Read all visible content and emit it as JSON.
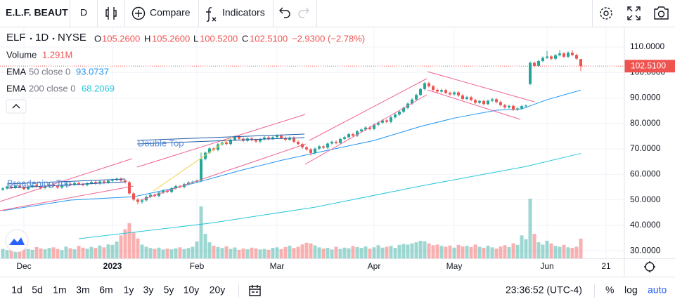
{
  "toolbar": {
    "symbol": "E.L.F. BEAUT",
    "interval": "D",
    "compare": "Compare",
    "indicators": "Indicators"
  },
  "legend": {
    "symbol": "ELF",
    "interval": "1D",
    "exchange": "NYSE",
    "ohlc": [
      {
        "key": "O",
        "value": "105.2600"
      },
      {
        "key": "H",
        "value": "105.2600"
      },
      {
        "key": "L",
        "value": "100.5200"
      },
      {
        "key": "C",
        "value": "102.5100"
      }
    ],
    "change": "−2.9300 (−2.78%)",
    "volume_name": "Volume",
    "volume_label": "1.291M"
  },
  "bottom_bar": {
    "ranges": [
      "1d",
      "5d",
      "1m",
      "3m",
      "6m",
      "1y",
      "3y",
      "5y",
      "10y",
      "20y"
    ],
    "clock": "23:36:52 (UTC-4)",
    "scale_options": [
      "%",
      "log",
      "auto"
    ]
  },
  "chart_data": {
    "type": "candlestick",
    "categories": [
      null,
      null,
      null,
      null,
      null,
      "Dec",
      null,
      null,
      null,
      null,
      null,
      null,
      null,
      null,
      null,
      null,
      null,
      null,
      null,
      null,
      null,
      null,
      null,
      null,
      null,
      null,
      "2023",
      null,
      null,
      null,
      null,
      null,
      null,
      null,
      null,
      null,
      null,
      null,
      null,
      null,
      null,
      null,
      null,
      null,
      null,
      null,
      "Feb",
      null,
      null,
      null,
      null,
      null,
      null,
      null,
      null,
      null,
      null,
      null,
      null,
      null,
      null,
      null,
      null,
      null,
      null,
      "Mar",
      null,
      null,
      null,
      null,
      null,
      null,
      null,
      null,
      null,
      null,
      null,
      null,
      null,
      null,
      null,
      null,
      null,
      null,
      null,
      null,
      null,
      null,
      "Apr",
      null,
      null,
      null,
      null,
      null,
      null,
      null,
      null,
      null,
      null,
      null,
      null,
      null,
      null,
      null,
      null,
      null,
      null,
      "May",
      null,
      null,
      null,
      null,
      null,
      null,
      null,
      null,
      null,
      null,
      null,
      null,
      null,
      null,
      null,
      null,
      null,
      null,
      null,
      null,
      null,
      "Jun",
      null,
      null,
      null,
      null,
      null,
      null,
      null,
      null,
      null,
      null,
      null,
      null,
      null,
      "21"
    ],
    "ohlc": [
      [
        54.0,
        55.0,
        53.5,
        54.5
      ],
      [
        54.5,
        55.7,
        54.0,
        55.2
      ],
      [
        55.2,
        55.7,
        54.3,
        54.8
      ],
      [
        54.8,
        56.1,
        54.3,
        55.6
      ],
      [
        55.6,
        56.1,
        54.5,
        55.0
      ],
      [
        55.0,
        55.5,
        53.7,
        54.2
      ],
      [
        54.2,
        55.6,
        53.7,
        55.1
      ],
      [
        55.1,
        56.3,
        54.6,
        55.8
      ],
      [
        55.8,
        56.3,
        54.8,
        55.3
      ],
      [
        55.3,
        55.8,
        54.1,
        54.6
      ],
      [
        54.6,
        55.7,
        54.1,
        55.2
      ],
      [
        55.2,
        56.5,
        54.7,
        56.0
      ],
      [
        56.0,
        56.5,
        54.9,
        55.4
      ],
      [
        55.4,
        55.9,
        54.3,
        54.8
      ],
      [
        54.8,
        56.2,
        54.3,
        55.7
      ],
      [
        55.7,
        56.8,
        55.2,
        56.3
      ],
      [
        56.3,
        56.8,
        55.4,
        55.9
      ],
      [
        55.9,
        57.1,
        55.4,
        56.6
      ],
      [
        56.6,
        57.1,
        55.6,
        56.1
      ],
      [
        56.1,
        56.6,
        55.3,
        55.8
      ],
      [
        55.8,
        57.0,
        55.3,
        56.5
      ],
      [
        56.5,
        57.5,
        56.0,
        57.0
      ],
      [
        57.0,
        57.5,
        55.9,
        56.4
      ],
      [
        56.4,
        57.7,
        55.9,
        57.2
      ],
      [
        57.2,
        57.7,
        56.3,
        56.8
      ],
      [
        56.8,
        58.0,
        56.3,
        57.5
      ],
      [
        57.5,
        58.3,
        57.0,
        57.8
      ],
      [
        57.8,
        58.8,
        57.3,
        58.3
      ],
      [
        58.3,
        58.8,
        57.1,
        57.6
      ],
      [
        57.6,
        58.1,
        56.4,
        56.9
      ],
      [
        56.9,
        57.4,
        52.0,
        52.5
      ],
      [
        52.5,
        53.0,
        49.6,
        50.1
      ],
      [
        50.1,
        50.6,
        48.2,
        49.2
      ],
      [
        49.2,
        50.3,
        48.5,
        49.8
      ],
      [
        49.8,
        51.7,
        49.3,
        51.2
      ],
      [
        51.2,
        52.5,
        50.7,
        52.0
      ],
      [
        52.0,
        52.5,
        51.0,
        51.5
      ],
      [
        51.5,
        53.3,
        51.0,
        52.8
      ],
      [
        52.8,
        54.1,
        52.3,
        53.6
      ],
      [
        53.6,
        54.1,
        52.6,
        53.1
      ],
      [
        53.1,
        55.0,
        52.6,
        54.5
      ],
      [
        54.5,
        55.9,
        54.0,
        55.4
      ],
      [
        55.4,
        55.9,
        54.5,
        55.0
      ],
      [
        55.0,
        56.7,
        54.5,
        56.2
      ],
      [
        56.2,
        57.3,
        55.7,
        56.8
      ],
      [
        56.8,
        57.6,
        56.3,
        57.1
      ],
      [
        57.1,
        58.0,
        56.6,
        57.5
      ],
      [
        57.5,
        68.5,
        57.0,
        66.0
      ],
      [
        66.0,
        69.0,
        65.5,
        68.5
      ],
      [
        68.5,
        70.7,
        68.0,
        70.2
      ],
      [
        70.2,
        70.7,
        69.1,
        69.6
      ],
      [
        69.6,
        72.3,
        69.1,
        71.8
      ],
      [
        71.8,
        73.0,
        71.3,
        72.5
      ],
      [
        72.5,
        73.0,
        71.4,
        71.9
      ],
      [
        71.9,
        74.1,
        71.4,
        73.6
      ],
      [
        73.6,
        75.3,
        73.1,
        74.8
      ],
      [
        74.8,
        75.3,
        73.5,
        74.0
      ],
      [
        74.0,
        74.5,
        72.7,
        73.2
      ],
      [
        73.2,
        74.6,
        72.7,
        74.1
      ],
      [
        74.1,
        74.6,
        73.0,
        73.5
      ],
      [
        73.5,
        74.0,
        72.4,
        72.9
      ],
      [
        72.9,
        74.3,
        72.4,
        73.8
      ],
      [
        73.8,
        75.0,
        73.3,
        74.5
      ],
      [
        74.5,
        75.0,
        73.4,
        73.9
      ],
      [
        73.9,
        75.1,
        73.4,
        74.6
      ],
      [
        74.6,
        75.7,
        74.1,
        75.2
      ],
      [
        75.2,
        75.7,
        73.8,
        74.3
      ],
      [
        74.3,
        74.8,
        73.1,
        73.6
      ],
      [
        73.6,
        74.9,
        73.1,
        74.4
      ],
      [
        74.4,
        74.9,
        72.3,
        72.8
      ],
      [
        72.8,
        73.3,
        71.4,
        71.9
      ],
      [
        71.9,
        72.4,
        70.1,
        70.6
      ],
      [
        70.6,
        71.1,
        69.3,
        69.8
      ],
      [
        69.8,
        70.3,
        67.4,
        68.4
      ],
      [
        68.4,
        70.6,
        67.9,
        70.1
      ],
      [
        70.1,
        71.5,
        69.6,
        71.0
      ],
      [
        71.0,
        71.5,
        70.0,
        70.5
      ],
      [
        70.5,
        72.6,
        70.0,
        72.1
      ],
      [
        72.1,
        73.3,
        71.6,
        72.8
      ],
      [
        72.8,
        73.3,
        71.8,
        72.3
      ],
      [
        72.3,
        74.4,
        71.8,
        73.9
      ],
      [
        73.9,
        75.1,
        73.4,
        74.6
      ],
      [
        74.6,
        76.3,
        74.1,
        75.8
      ],
      [
        75.8,
        76.3,
        74.7,
        75.2
      ],
      [
        75.2,
        77.4,
        74.7,
        76.9
      ],
      [
        76.9,
        78.1,
        76.4,
        77.6
      ],
      [
        77.6,
        78.9,
        77.1,
        78.4
      ],
      [
        78.4,
        78.9,
        77.3,
        77.8
      ],
      [
        77.8,
        80.0,
        77.3,
        79.5
      ],
      [
        79.5,
        80.8,
        79.0,
        80.3
      ],
      [
        80.3,
        81.7,
        79.8,
        81.2
      ],
      [
        81.2,
        81.7,
        80.1,
        80.6
      ],
      [
        80.6,
        82.9,
        80.1,
        82.4
      ],
      [
        82.4,
        84.0,
        81.9,
        83.5
      ],
      [
        83.5,
        85.1,
        83.0,
        84.6
      ],
      [
        84.6,
        86.6,
        84.1,
        86.1
      ],
      [
        86.1,
        88.3,
        85.6,
        87.8
      ],
      [
        87.8,
        89.9,
        87.3,
        89.4
      ],
      [
        89.4,
        91.7,
        88.9,
        91.2
      ],
      [
        91.2,
        94.0,
        90.7,
        93.5
      ],
      [
        93.5,
        96.3,
        93.0,
        95.8
      ],
      [
        95.8,
        96.3,
        94.1,
        94.6
      ],
      [
        94.6,
        95.1,
        92.7,
        93.2
      ],
      [
        93.2,
        93.7,
        92.0,
        92.5
      ],
      [
        92.5,
        93.6,
        92.0,
        93.1
      ],
      [
        93.1,
        93.6,
        91.5,
        92.0
      ],
      [
        92.0,
        92.5,
        90.9,
        91.4
      ],
      [
        91.4,
        92.7,
        90.9,
        92.2
      ],
      [
        92.2,
        92.7,
        90.5,
        91.0
      ],
      [
        91.0,
        91.5,
        89.1,
        89.6
      ],
      [
        89.6,
        90.8,
        89.1,
        90.3
      ],
      [
        90.3,
        90.8,
        88.7,
        89.2
      ],
      [
        89.2,
        89.7,
        87.6,
        88.1
      ],
      [
        88.1,
        89.3,
        87.6,
        88.8
      ],
      [
        88.8,
        89.3,
        87.1,
        87.6
      ],
      [
        87.6,
        89.4,
        87.1,
        88.9
      ],
      [
        88.9,
        90.0,
        88.4,
        89.5
      ],
      [
        89.5,
        90.0,
        87.9,
        88.4
      ],
      [
        88.4,
        88.9,
        86.7,
        87.2
      ],
      [
        87.2,
        87.7,
        85.8,
        86.3
      ],
      [
        86.3,
        87.4,
        85.8,
        86.9
      ],
      [
        86.9,
        87.4,
        84.9,
        85.4
      ],
      [
        85.4,
        86.4,
        84.9,
        85.9
      ],
      [
        85.9,
        87.3,
        85.4,
        86.8
      ],
      [
        86.8,
        87.5,
        86.3,
        87.0
      ],
      [
        95.5,
        104.3,
        95.0,
        103.8
      ],
      [
        103.8,
        104.3,
        102.1,
        102.6
      ],
      [
        102.6,
        105.0,
        102.1,
        104.5
      ],
      [
        104.5,
        106.3,
        104.0,
        105.8
      ],
      [
        105.8,
        108.5,
        105.3,
        106.3
      ],
      [
        106.3,
        106.8,
        104.9,
        105.4
      ],
      [
        105.4,
        107.3,
        104.9,
        106.8
      ],
      [
        106.8,
        108.8,
        106.3,
        107.5
      ],
      [
        107.5,
        108.0,
        105.7,
        106.2
      ],
      [
        106.2,
        108.3,
        105.7,
        107.8
      ],
      [
        107.8,
        108.8,
        106.4,
        106.9
      ],
      [
        106.9,
        107.4,
        104.9,
        105.44
      ],
      [
        105.26,
        105.26,
        100.52,
        102.51
      ],
      null,
      null,
      null,
      null,
      null,
      null
    ],
    "volume": [
      620000,
      540000,
      710000,
      580000,
      690000,
      820000,
      610000,
      560000,
      740000,
      650000,
      590000,
      680000,
      720000,
      610000,
      540000,
      770000,
      660000,
      590000,
      820000,
      700000,
      630000,
      750000,
      680000,
      840000,
      720000,
      910000,
      880000,
      1100000,
      1500000,
      1900000,
      2300000,
      1700000,
      1300000,
      900000,
      760000,
      680000,
      620000,
      700000,
      580000,
      640000,
      590000,
      660000,
      720000,
      610000,
      680000,
      760000,
      1100000,
      3400000,
      1600000,
      1050000,
      820000,
      740000,
      680000,
      790000,
      620000,
      710000,
      560000,
      640000,
      590000,
      700000,
      650000,
      580000,
      620000,
      560000,
      690000,
      720000,
      600000,
      740000,
      830000,
      680000,
      760000,
      910000,
      1020000,
      980000,
      850000,
      720000,
      640000,
      690000,
      580000,
      760000,
      620000,
      700000,
      660000,
      810000,
      740000,
      690000,
      780000,
      640000,
      720000,
      860000,
      700000,
      760000,
      820000,
      690000,
      880000,
      940000,
      900000,
      980000,
      1050000,
      1150000,
      1120000,
      980000,
      860000,
      900000,
      820000,
      760000,
      840000,
      700000,
      880000,
      780000,
      820000,
      740000,
      900000,
      760000,
      690000,
      830000,
      720000,
      640000,
      780000,
      860000,
      740000,
      980000,
      880000,
      1500000,
      1250000,
      3900000,
      1600000,
      1050000,
      900000,
      1150000,
      980000,
      820000,
      760000,
      880000,
      720000,
      690000,
      760000,
      1291000,
      null,
      null,
      null,
      null,
      null,
      null
    ],
    "up_color": "#26a69a",
    "down_color": "#ef5350",
    "ema": [
      {
        "name": "EMA",
        "params": "50 close 0",
        "color": "#2196f3",
        "x": [
          0,
          16,
          31,
          39,
          46,
          56,
          66,
          76,
          88,
          99,
          107,
          117,
          123,
          129,
          137
        ],
        "values": [
          45.7,
          49.9,
          51.2,
          54.0,
          56.8,
          61.4,
          65.5,
          69.1,
          73.3,
          78.8,
          82.1,
          85.2,
          85.7,
          89.3,
          93.0737
        ]
      },
      {
        "name": "EMA",
        "params": "200 close 0",
        "color": "#26c6da",
        "x": [
          18,
          49,
          74,
          99,
          124,
          137
        ],
        "values": [
          34.7,
          40.8,
          47.1,
          55.4,
          63.1,
          68.2069
        ]
      }
    ],
    "last_price": {
      "value": 102.51,
      "label": "102.5100"
    },
    "annotations": [
      "Double Top",
      "Broadening Top"
    ],
    "ylim": [
      27,
      117.45
    ],
    "yticks": [
      {
        "value": 30,
        "label": "30.0000"
      },
      {
        "value": 40,
        "label": "40.0000"
      },
      {
        "value": 50,
        "label": "50.0000"
      },
      {
        "value": 60,
        "label": "60.0000"
      },
      {
        "value": 70,
        "label": "70.0000"
      },
      {
        "value": 80,
        "label": "80.0000"
      },
      {
        "value": 90,
        "label": "90.0000"
      },
      {
        "value": 100,
        "label": "100.0000"
      },
      {
        "value": 110,
        "label": "110.0000"
      }
    ],
    "grid": true
  }
}
